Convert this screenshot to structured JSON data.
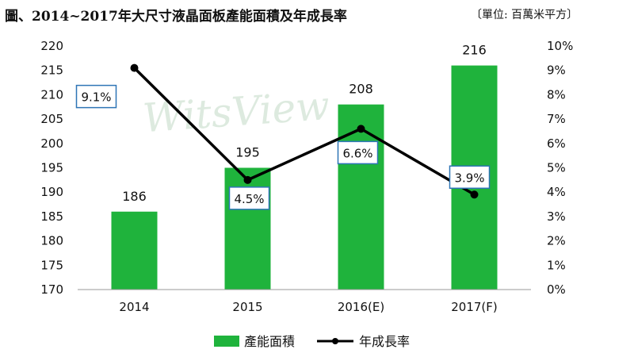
{
  "title": "圖、2014~2017年大尺寸液晶面板產能面積及年成長率",
  "unit_note": "〔單位: 百萬米平方〕",
  "watermark": "WitsView",
  "colors": {
    "bar": "#1fb33c",
    "line": "#000000",
    "label_border": "#2e75b6"
  },
  "chart_data": {
    "type": "bar",
    "categories": [
      "2014",
      "2015",
      "2016(E)",
      "2017(F)"
    ],
    "series": [
      {
        "name": "產能面積",
        "type": "bar",
        "axis": "left",
        "values": [
          186,
          195,
          208,
          216
        ],
        "labels": [
          "186",
          "195",
          "208",
          "216"
        ]
      },
      {
        "name": "年成長率",
        "type": "line",
        "axis": "right",
        "values": [
          9.1,
          4.5,
          6.6,
          3.9
        ],
        "labels": [
          "9.1%",
          "4.5%",
          "6.6%",
          "3.9%"
        ]
      }
    ],
    "left_axis": {
      "ylim": [
        170,
        220
      ],
      "ticks": [
        "170",
        "175",
        "180",
        "185",
        "190",
        "195",
        "200",
        "205",
        "210",
        "215",
        "220"
      ]
    },
    "right_axis": {
      "ylim": [
        0,
        10
      ],
      "ticks": [
        "0%",
        "1%",
        "2%",
        "3%",
        "4%",
        "5%",
        "6%",
        "7%",
        "8%",
        "9%",
        "10%"
      ]
    },
    "grid": false,
    "legend_position": "bottom"
  }
}
